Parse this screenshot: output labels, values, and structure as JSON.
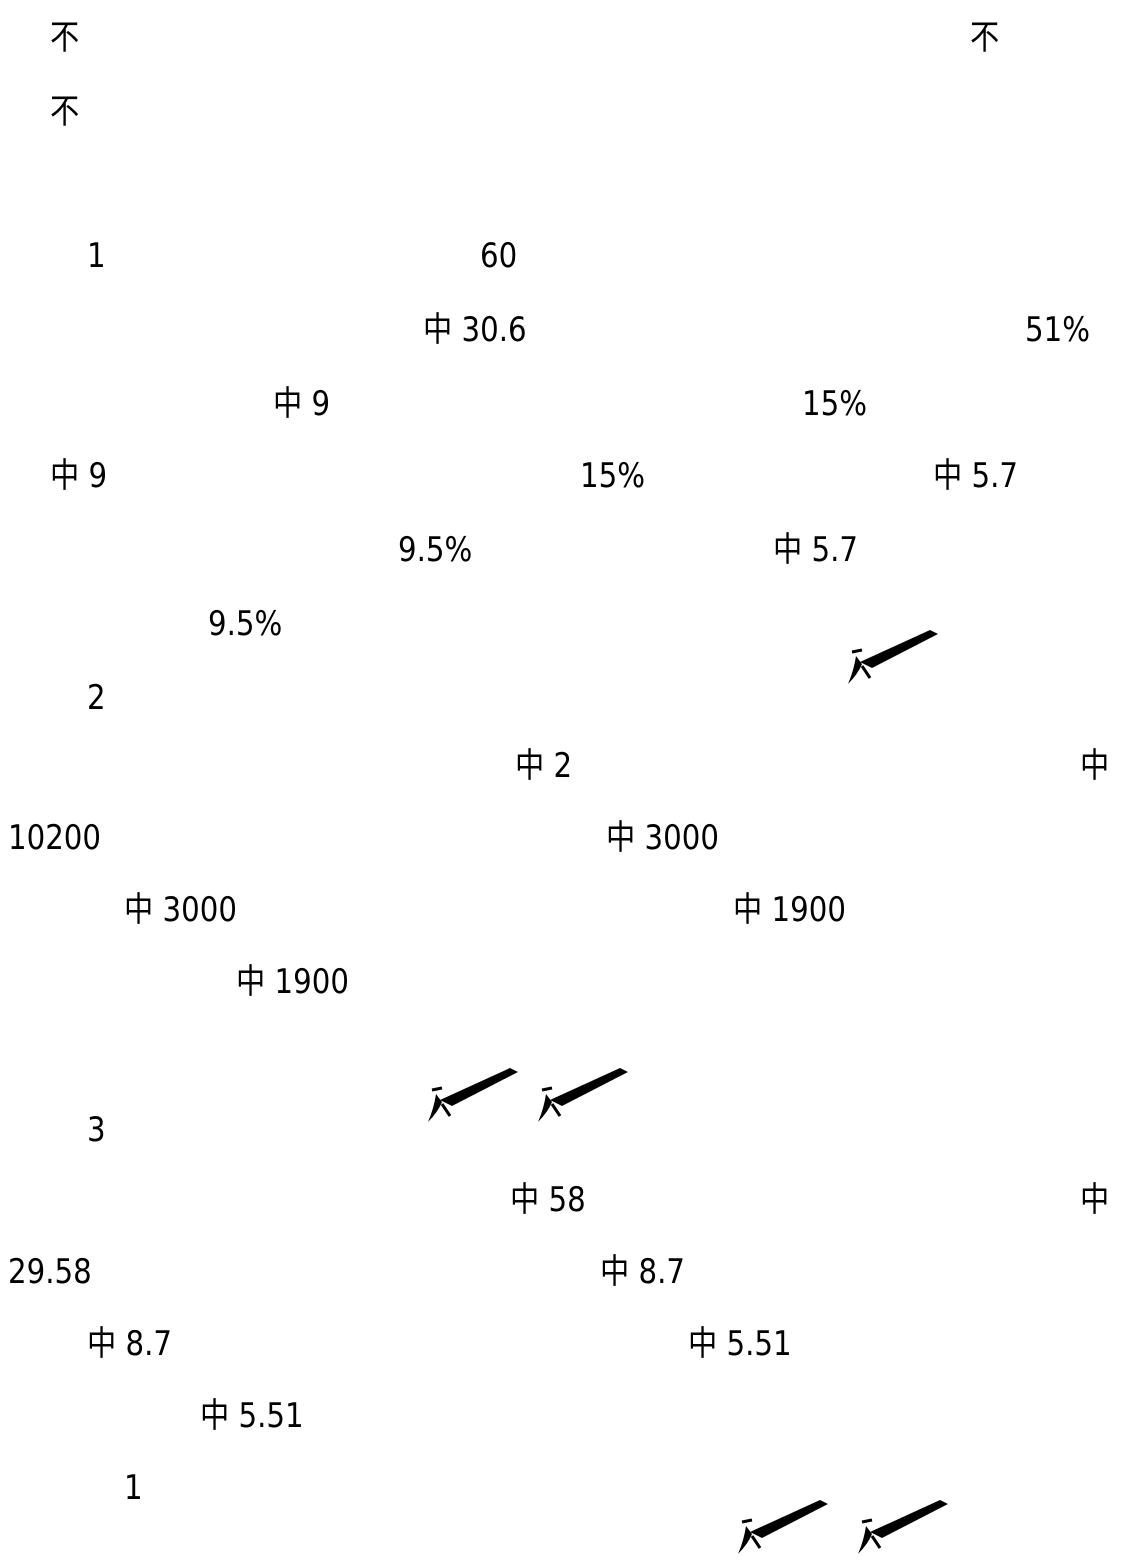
{
  "header": {
    "left_char": "不",
    "right_char": "不",
    "second_char": "不"
  },
  "lines": {
    "l1_num": "1",
    "l1_val": "60",
    "l2_val": "中 30.6",
    "l2_pct": "51%",
    "l3_val": "中 9",
    "l3_pct": "15%",
    "l4_val": "中 9",
    "l4_pct": "15%",
    "l4_val2": "中 5.7",
    "l5_pct": "9.5%",
    "l5_val": "中 5.7",
    "l6_pct": "9.5%",
    "l7_num": "2",
    "l8_val": "中 2",
    "l8_char": "中",
    "l9_num": "10200",
    "l9_val": "中 3000",
    "l10_val": "中 3000",
    "l10_val2": "中 1900",
    "l11_val": "中 1900",
    "l12_num": "3",
    "l13_val": "中 58",
    "l13_char": "中",
    "l14_num": "29.58",
    "l14_val": "中 8.7",
    "l15_val": "中 8.7",
    "l15_val2": "中 5.51",
    "l16_val": "中 5.51",
    "l17_num": "1"
  },
  "icons": {
    "scribble": "brush-stroke-icon"
  }
}
